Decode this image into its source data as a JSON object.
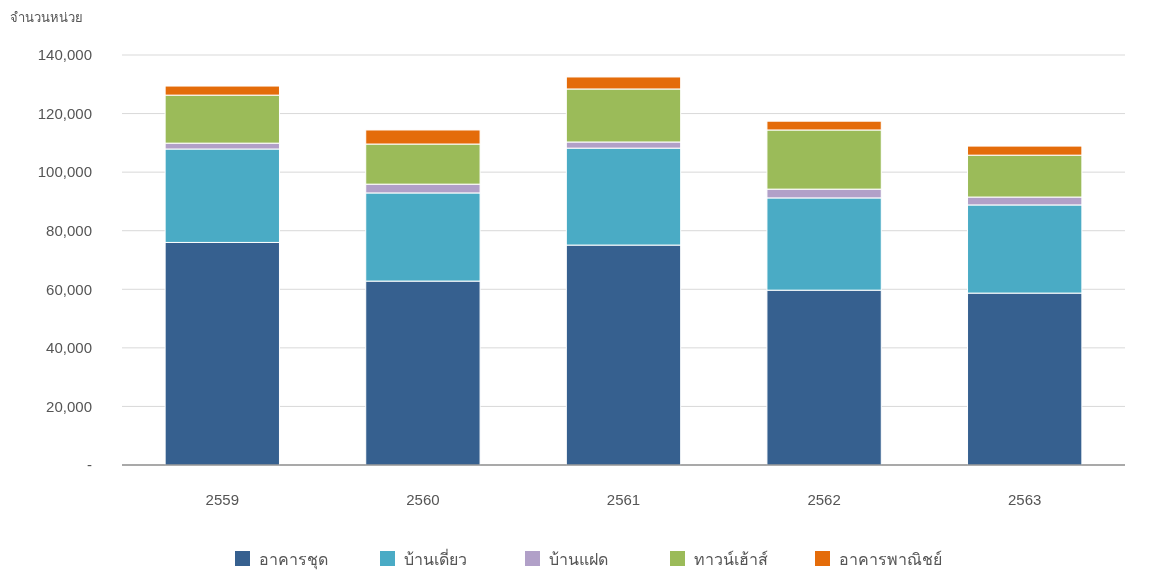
{
  "chart_data": {
    "type": "bar",
    "ylabel": "จำนวนหน่วย",
    "categories": [
      "2559",
      "2560",
      "2561",
      "2562",
      "2563"
    ],
    "stacked": true,
    "ylim": [
      0,
      140000
    ],
    "yticks": [
      {
        "value": 0,
        "label": "-"
      },
      {
        "value": 20000,
        "label": "20,000"
      },
      {
        "value": 40000,
        "label": "40,000"
      },
      {
        "value": 60000,
        "label": "60,000"
      },
      {
        "value": 80000,
        "label": "80,000"
      },
      {
        "value": 100000,
        "label": "100,000"
      },
      {
        "value": 120000,
        "label": "120,000"
      },
      {
        "value": 140000,
        "label": "140,000"
      }
    ],
    "grid": "y",
    "legend": "bottom",
    "series": [
      {
        "name": "อาคารชุด",
        "color": "#36608f",
        "values": [
          76000,
          62800,
          75100,
          59700,
          58700
        ]
      },
      {
        "name": "บ้านเดี่ยว",
        "color": "#4aabc5",
        "values": [
          31900,
          30100,
          33100,
          31500,
          30100
        ]
      },
      {
        "name": "บ้านแฝด",
        "color": "#b1a0c8",
        "values": [
          2000,
          3000,
          2100,
          3000,
          2700
        ]
      },
      {
        "name": "ทาวน์เฮ้าส์",
        "color": "#9bbb59",
        "values": [
          16400,
          13700,
          18100,
          20200,
          14300
        ]
      },
      {
        "name": "อาคารพาณิชย์",
        "color": "#e46c0a",
        "values": [
          3100,
          4800,
          4100,
          3000,
          3100
        ]
      }
    ]
  }
}
